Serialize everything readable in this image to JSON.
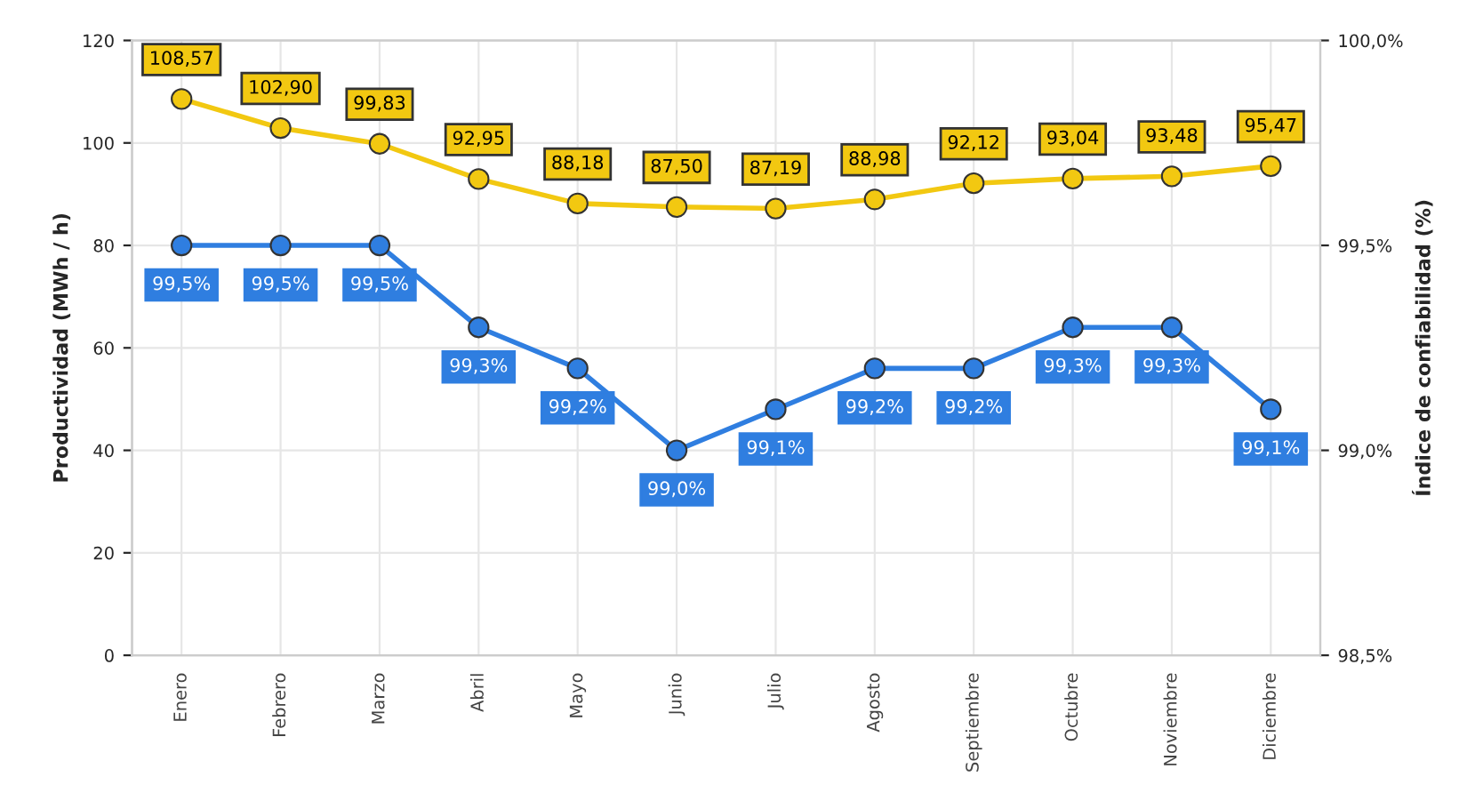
{
  "chart_data": {
    "type": "line",
    "ylabel": "Productividad (MWh / h)",
    "y2label": "Índice de confiabilidad (%)",
    "categories": [
      "Enero",
      "Febrero",
      "Marzo",
      "Abril",
      "Mayo",
      "Junio",
      "Julio",
      "Agosto",
      "Septiembre",
      "Octubre",
      "Noviembre",
      "Diciembre"
    ],
    "series": [
      {
        "color": "#f2c811",
        "values": [
          108.57,
          102.9,
          99.83,
          92.95,
          88.18,
          87.5,
          87.19,
          88.98,
          92.12,
          93.04,
          93.48,
          95.47
        ],
        "value_labels": [
          "108,57",
          "102,90",
          "99,83",
          "92,95",
          "88,18",
          "87,50",
          "87,19",
          "88,98",
          "92,12",
          "93,04",
          "93,48",
          "95,47"
        ]
      },
      {
        "color": "#2f7ee0",
        "axis": "y2",
        "values": [
          99.5,
          99.5,
          99.5,
          99.3,
          99.2,
          99.0,
          99.1,
          99.2,
          99.2,
          99.3,
          99.3,
          99.1
        ],
        "value_labels": [
          "99,5%",
          "99,5%",
          "99,5%",
          "99,3%",
          "99,2%",
          "99,0%",
          "99,1%",
          "99,2%",
          "99,2%",
          "99,3%",
          "99,3%",
          "99,1%"
        ]
      }
    ],
    "ylim": [
      0,
      120
    ],
    "yticks": [
      0,
      20,
      40,
      60,
      80,
      100,
      120
    ],
    "y2lim": [
      98.5,
      100.0
    ],
    "y2ticks": [
      {
        "value": 98.5,
        "label": "98,5%"
      },
      {
        "value": 99.0,
        "label": "99,0%"
      },
      {
        "value": 99.5,
        "label": "99,5%"
      },
      {
        "value": 100.0,
        "label": "100,0%"
      }
    ],
    "grid": true,
    "marker": "circle",
    "line_style": "solid"
  }
}
